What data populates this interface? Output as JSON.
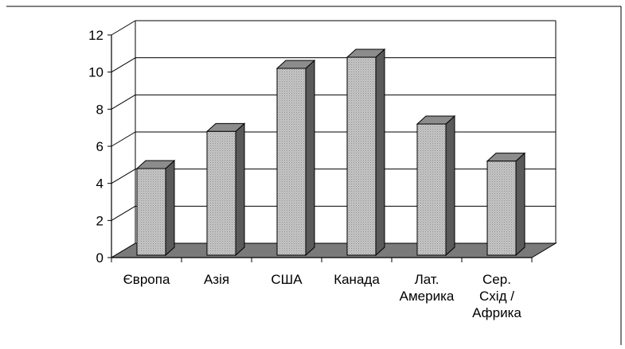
{
  "chart_data": {
    "type": "bar",
    "title": "",
    "xlabel": "",
    "ylabel": "",
    "ylim": [
      0,
      12
    ],
    "yticks": [
      0,
      2,
      4,
      6,
      8,
      10,
      12
    ],
    "grid": true,
    "legend": "none",
    "three_d": true,
    "categories": [
      [
        "Європа"
      ],
      [
        "Азія"
      ],
      [
        "США"
      ],
      [
        "Канада"
      ],
      [
        "Лат.",
        "Америка"
      ],
      [
        "Сер.",
        "Схід /",
        "Африка"
      ]
    ],
    "values": [
      4.8,
      6.8,
      10.2,
      10.8,
      7.2,
      5.2
    ]
  },
  "colors": {
    "bar_front": "#bdbdbd",
    "bar_side": "#5a5a5a",
    "bar_top": "#8c8c8c",
    "floor": "#7a7a7a",
    "axis": "#000000",
    "grid": "#000000"
  }
}
